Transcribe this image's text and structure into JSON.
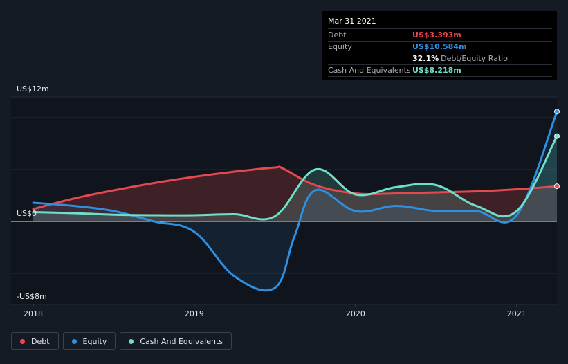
{
  "tooltip": {
    "date": "Mar 31 2021",
    "debt_label": "Debt",
    "debt_value": "US$3.393m",
    "equity_label": "Equity",
    "equity_value": "US$10.584m",
    "ratio_value": "32.1%",
    "ratio_label": "Debt/Equity Ratio",
    "cash_label": "Cash And Equivalents",
    "cash_value": "US$8.218m"
  },
  "legend": [
    {
      "name": "legend-debt",
      "label": "Debt",
      "color": "#e5484d"
    },
    {
      "name": "legend-equity",
      "label": "Equity",
      "color": "#2f8fe0"
    },
    {
      "name": "legend-cash",
      "label": "Cash And Equivalents",
      "color": "#6fe0c8"
    }
  ],
  "chart_data": {
    "type": "line",
    "ylim": [
      -8,
      12
    ],
    "y_tick_labels": [
      {
        "value": 12,
        "label": "US$12m"
      },
      {
        "value": 0,
        "label": "US$0"
      },
      {
        "value": -8,
        "label": "-US$8m"
      }
    ],
    "x_tick_labels": [
      {
        "value": 2018.0,
        "label": "2018"
      },
      {
        "value": 2019.0,
        "label": "2019"
      },
      {
        "value": 2020.0,
        "label": "2020"
      },
      {
        "value": 2021.0,
        "label": "2021"
      }
    ],
    "xlim": [
      2018.0,
      2021.25
    ],
    "grid": true,
    "legend_position": "bottom-left",
    "series": [
      {
        "name": "Debt",
        "color": "#e5484d",
        "points": [
          [
            2018.0,
            1.2
          ],
          [
            2018.25,
            2.2
          ],
          [
            2018.5,
            3.0
          ],
          [
            2018.75,
            3.7
          ],
          [
            2019.0,
            4.3
          ],
          [
            2019.25,
            4.8
          ],
          [
            2019.5,
            5.2
          ],
          [
            2019.55,
            5.1
          ],
          [
            2019.75,
            3.5
          ],
          [
            2020.0,
            2.7
          ],
          [
            2020.25,
            2.7
          ],
          [
            2020.5,
            2.8
          ],
          [
            2020.75,
            2.9
          ],
          [
            2021.0,
            3.1
          ],
          [
            2021.25,
            3.39
          ]
        ]
      },
      {
        "name": "Equity",
        "color": "#2f8fe0",
        "points": [
          [
            2018.0,
            1.8
          ],
          [
            2018.25,
            1.5
          ],
          [
            2018.5,
            1.0
          ],
          [
            2018.75,
            0.0
          ],
          [
            2019.0,
            -1.0
          ],
          [
            2019.25,
            -5.3
          ],
          [
            2019.5,
            -6.4
          ],
          [
            2019.62,
            -1.5
          ],
          [
            2019.75,
            3.0
          ],
          [
            2020.0,
            1.0
          ],
          [
            2020.25,
            1.5
          ],
          [
            2020.5,
            1.0
          ],
          [
            2020.75,
            1.0
          ],
          [
            2021.0,
            0.6
          ],
          [
            2021.25,
            10.58
          ]
        ]
      },
      {
        "name": "Cash And Equivalents",
        "color": "#6fe0c8",
        "points": [
          [
            2018.0,
            0.9
          ],
          [
            2018.25,
            0.8
          ],
          [
            2018.5,
            0.65
          ],
          [
            2018.75,
            0.6
          ],
          [
            2019.0,
            0.6
          ],
          [
            2019.25,
            0.7
          ],
          [
            2019.5,
            0.5
          ],
          [
            2019.75,
            5.0
          ],
          [
            2020.0,
            2.6
          ],
          [
            2020.25,
            3.3
          ],
          [
            2020.5,
            3.5
          ],
          [
            2020.75,
            1.5
          ],
          [
            2021.0,
            1.0
          ],
          [
            2021.25,
            8.22
          ]
        ]
      }
    ]
  }
}
